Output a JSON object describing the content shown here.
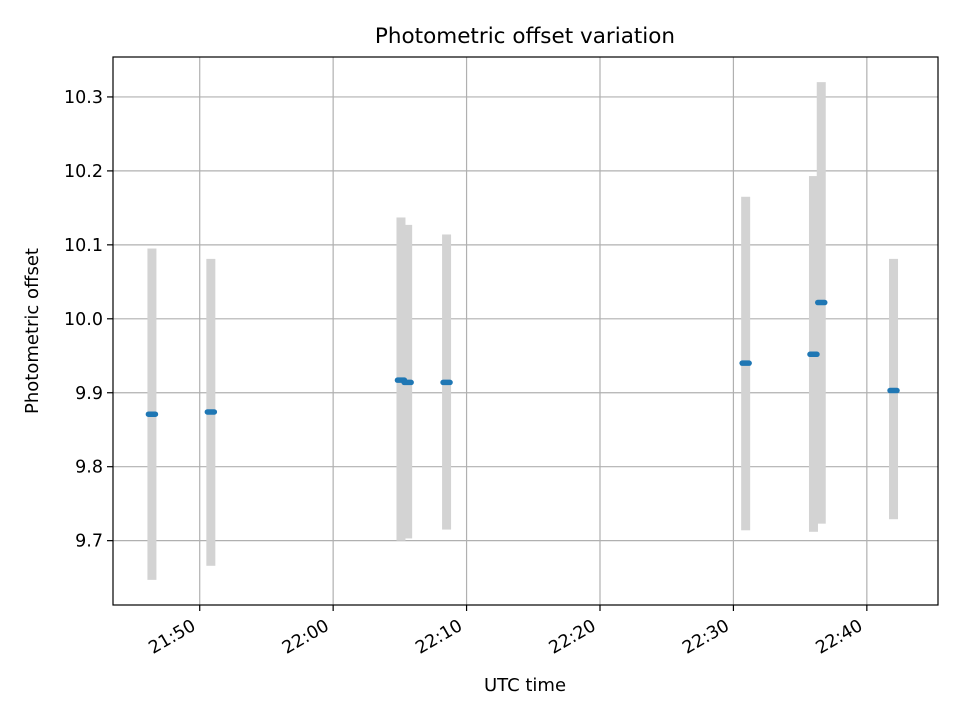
{
  "chart_data": {
    "type": "scatter",
    "title": "Photometric offset variation",
    "xlabel": "UTC time",
    "ylabel": "Photometric offset",
    "xlim": [
      "21:43:30",
      "22:45:20"
    ],
    "ylim": [
      9.613,
      10.354
    ],
    "x_ticks": [
      "21:50",
      "22:00",
      "22:10",
      "22:20",
      "22:30",
      "22:40"
    ],
    "y_ticks": [
      "9.7",
      "9.8",
      "9.9",
      "10.0",
      "10.1",
      "10.2",
      "10.3"
    ],
    "grid": true,
    "legend": "none",
    "colors": {
      "point": "#1f77b4",
      "errorbar": "#d3d3d3",
      "grid": "#b0b0b0"
    },
    "points": [
      {
        "x": "21:46:25",
        "y": 9.871,
        "ymin": 9.647,
        "ymax": 10.095
      },
      {
        "x": "21:50:50",
        "y": 9.874,
        "ymin": 9.666,
        "ymax": 10.081
      },
      {
        "x": "22:05:05",
        "y": 9.917,
        "ymin": 9.7,
        "ymax": 10.137
      },
      {
        "x": "22:05:35",
        "y": 9.914,
        "ymin": 9.703,
        "ymax": 10.127
      },
      {
        "x": "22:08:30",
        "y": 9.914,
        "ymin": 9.715,
        "ymax": 10.114
      },
      {
        "x": "22:30:55",
        "y": 9.94,
        "ymin": 9.714,
        "ymax": 10.165
      },
      {
        "x": "22:36:00",
        "y": 9.952,
        "ymin": 9.712,
        "ymax": 10.193
      },
      {
        "x": "22:36:35",
        "y": 10.022,
        "ymin": 9.723,
        "ymax": 10.32
      },
      {
        "x": "22:42:00",
        "y": 9.903,
        "ymin": 9.729,
        "ymax": 10.081
      }
    ]
  }
}
